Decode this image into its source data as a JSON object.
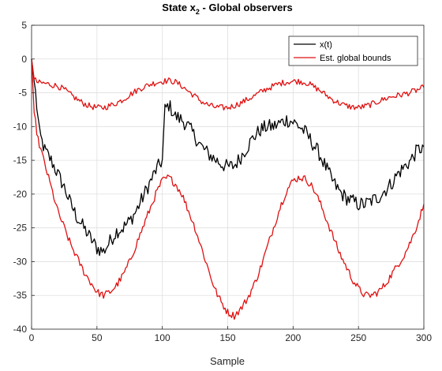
{
  "chart_data": {
    "type": "line",
    "title": "State x",
    "title_subscript": "2",
    "title_suffix": " - Global observers",
    "xlabel": "Sample",
    "ylabel": "",
    "xlim": [
      0,
      300
    ],
    "ylim": [
      -40,
      5
    ],
    "xticks": [
      0,
      50,
      100,
      150,
      200,
      250,
      300
    ],
    "yticks": [
      5,
      0,
      -5,
      -10,
      -15,
      -20,
      -25,
      -30,
      -35,
      -40
    ],
    "grid": true,
    "legend_position": "top-right",
    "series": [
      {
        "name": "x(t)",
        "color": "#000000",
        "points": [
          [
            0,
            0
          ],
          [
            3,
            -5
          ],
          [
            6,
            -11
          ],
          [
            10,
            -13.5
          ],
          [
            15,
            -15
          ],
          [
            20,
            -17
          ],
          [
            25,
            -19
          ],
          [
            30,
            -21.5
          ],
          [
            35,
            -23.5
          ],
          [
            40,
            -25
          ],
          [
            45,
            -26.5
          ],
          [
            50,
            -28
          ],
          [
            55,
            -28.5
          ],
          [
            60,
            -27
          ],
          [
            65,
            -25.5
          ],
          [
            70,
            -25
          ],
          [
            75,
            -24
          ],
          [
            80,
            -22.5
          ],
          [
            85,
            -20.5
          ],
          [
            90,
            -18.5
          ],
          [
            95,
            -16.5
          ],
          [
            100,
            -15
          ],
          [
            102,
            -7.5
          ],
          [
            105,
            -6.8
          ],
          [
            110,
            -8.5
          ],
          [
            115,
            -9
          ],
          [
            120,
            -10
          ],
          [
            125,
            -11.5
          ],
          [
            130,
            -13
          ],
          [
            135,
            -14
          ],
          [
            140,
            -14.8
          ],
          [
            145,
            -15.5
          ],
          [
            150,
            -16
          ],
          [
            155,
            -15.8
          ],
          [
            160,
            -14.5
          ],
          [
            165,
            -13
          ],
          [
            170,
            -11.5
          ],
          [
            175,
            -10.5
          ],
          [
            180,
            -10
          ],
          [
            185,
            -10
          ],
          [
            190,
            -9.5
          ],
          [
            195,
            -9
          ],
          [
            200,
            -9.3
          ],
          [
            205,
            -10
          ],
          [
            210,
            -11
          ],
          [
            215,
            -12.5
          ],
          [
            220,
            -14
          ],
          [
            225,
            -16
          ],
          [
            230,
            -18
          ],
          [
            235,
            -19.5
          ],
          [
            240,
            -20.5
          ],
          [
            245,
            -21
          ],
          [
            250,
            -21.5
          ],
          [
            255,
            -21.5
          ],
          [
            260,
            -21
          ],
          [
            265,
            -20.5
          ],
          [
            270,
            -19.5
          ],
          [
            275,
            -18.5
          ],
          [
            280,
            -17
          ],
          [
            285,
            -16
          ],
          [
            290,
            -15
          ],
          [
            295,
            -13.5
          ],
          [
            300,
            -13
          ]
        ]
      },
      {
        "name": "Est. global bounds",
        "color": "#e01010",
        "points": [
          [
            0,
            0
          ],
          [
            2,
            -3
          ],
          [
            5,
            -3.5
          ],
          [
            10,
            -3.6
          ],
          [
            15,
            -3.8
          ],
          [
            20,
            -4
          ],
          [
            25,
            -4.5
          ],
          [
            30,
            -5.3
          ],
          [
            35,
            -6
          ],
          [
            40,
            -6.6
          ],
          [
            45,
            -7
          ],
          [
            50,
            -7.2
          ],
          [
            55,
            -7.2
          ],
          [
            60,
            -6.9
          ],
          [
            65,
            -6.5
          ],
          [
            70,
            -6
          ],
          [
            75,
            -5.3
          ],
          [
            80,
            -4.7
          ],
          [
            85,
            -4.2
          ],
          [
            90,
            -3.8
          ],
          [
            95,
            -3.5
          ],
          [
            100,
            -3.3
          ],
          [
            105,
            -3.2
          ],
          [
            110,
            -3.4
          ],
          [
            115,
            -4
          ],
          [
            120,
            -4.8
          ],
          [
            125,
            -5.5
          ],
          [
            130,
            -6.3
          ],
          [
            135,
            -6.8
          ],
          [
            140,
            -7.1
          ],
          [
            145,
            -7.2
          ],
          [
            150,
            -7.2
          ],
          [
            155,
            -6.9
          ],
          [
            160,
            -6.5
          ],
          [
            165,
            -6
          ],
          [
            170,
            -5.5
          ],
          [
            175,
            -4.9
          ],
          [
            180,
            -4.4
          ],
          [
            185,
            -4
          ],
          [
            190,
            -3.6
          ],
          [
            195,
            -3.4
          ],
          [
            200,
            -3.3
          ],
          [
            205,
            -3.3
          ],
          [
            210,
            -3.5
          ],
          [
            215,
            -4
          ],
          [
            220,
            -4.6
          ],
          [
            225,
            -5.3
          ],
          [
            230,
            -6
          ],
          [
            235,
            -6.5
          ],
          [
            240,
            -6.9
          ],
          [
            245,
            -7.1
          ],
          [
            250,
            -7.2
          ],
          [
            255,
            -7
          ],
          [
            260,
            -6.7
          ],
          [
            265,
            -6.3
          ],
          [
            270,
            -5.9
          ],
          [
            275,
            -5.6
          ],
          [
            280,
            -5.4
          ],
          [
            285,
            -5.2
          ],
          [
            290,
            -4.9
          ],
          [
            295,
            -4.6
          ],
          [
            300,
            -4.2
          ]
        ]
      },
      {
        "name": "",
        "color": "#e01010",
        "points": [
          [
            0,
            0
          ],
          [
            2,
            -8
          ],
          [
            5,
            -12
          ],
          [
            10,
            -15.5
          ],
          [
            15,
            -19
          ],
          [
            20,
            -22.5
          ],
          [
            25,
            -25
          ],
          [
            30,
            -27.5
          ],
          [
            35,
            -29.5
          ],
          [
            40,
            -31.5
          ],
          [
            45,
            -33
          ],
          [
            50,
            -34.5
          ],
          [
            55,
            -35
          ],
          [
            60,
            -34.5
          ],
          [
            65,
            -33.5
          ],
          [
            70,
            -32
          ],
          [
            75,
            -30
          ],
          [
            80,
            -27.5
          ],
          [
            85,
            -25
          ],
          [
            90,
            -22.5
          ],
          [
            95,
            -20
          ],
          [
            100,
            -18
          ],
          [
            105,
            -17.5
          ],
          [
            110,
            -18.5
          ],
          [
            115,
            -20
          ],
          [
            120,
            -22.5
          ],
          [
            125,
            -25
          ],
          [
            130,
            -28
          ],
          [
            135,
            -31
          ],
          [
            140,
            -34
          ],
          [
            145,
            -36
          ],
          [
            150,
            -37.5
          ],
          [
            155,
            -38
          ],
          [
            160,
            -37
          ],
          [
            165,
            -35.5
          ],
          [
            170,
            -33.5
          ],
          [
            175,
            -31
          ],
          [
            180,
            -28
          ],
          [
            185,
            -25
          ],
          [
            190,
            -22
          ],
          [
            195,
            -19.5
          ],
          [
            200,
            -18
          ],
          [
            205,
            -17.5
          ],
          [
            210,
            -17.8
          ],
          [
            215,
            -19
          ],
          [
            220,
            -21
          ],
          [
            225,
            -23.5
          ],
          [
            230,
            -26
          ],
          [
            235,
            -28.5
          ],
          [
            240,
            -30.5
          ],
          [
            245,
            -32.5
          ],
          [
            250,
            -34
          ],
          [
            255,
            -35
          ],
          [
            260,
            -35
          ],
          [
            265,
            -34.5
          ],
          [
            270,
            -33.5
          ],
          [
            275,
            -32
          ],
          [
            280,
            -30.5
          ],
          [
            285,
            -29
          ],
          [
            290,
            -27
          ],
          [
            295,
            -24.5
          ],
          [
            300,
            -21.5
          ]
        ]
      }
    ]
  }
}
